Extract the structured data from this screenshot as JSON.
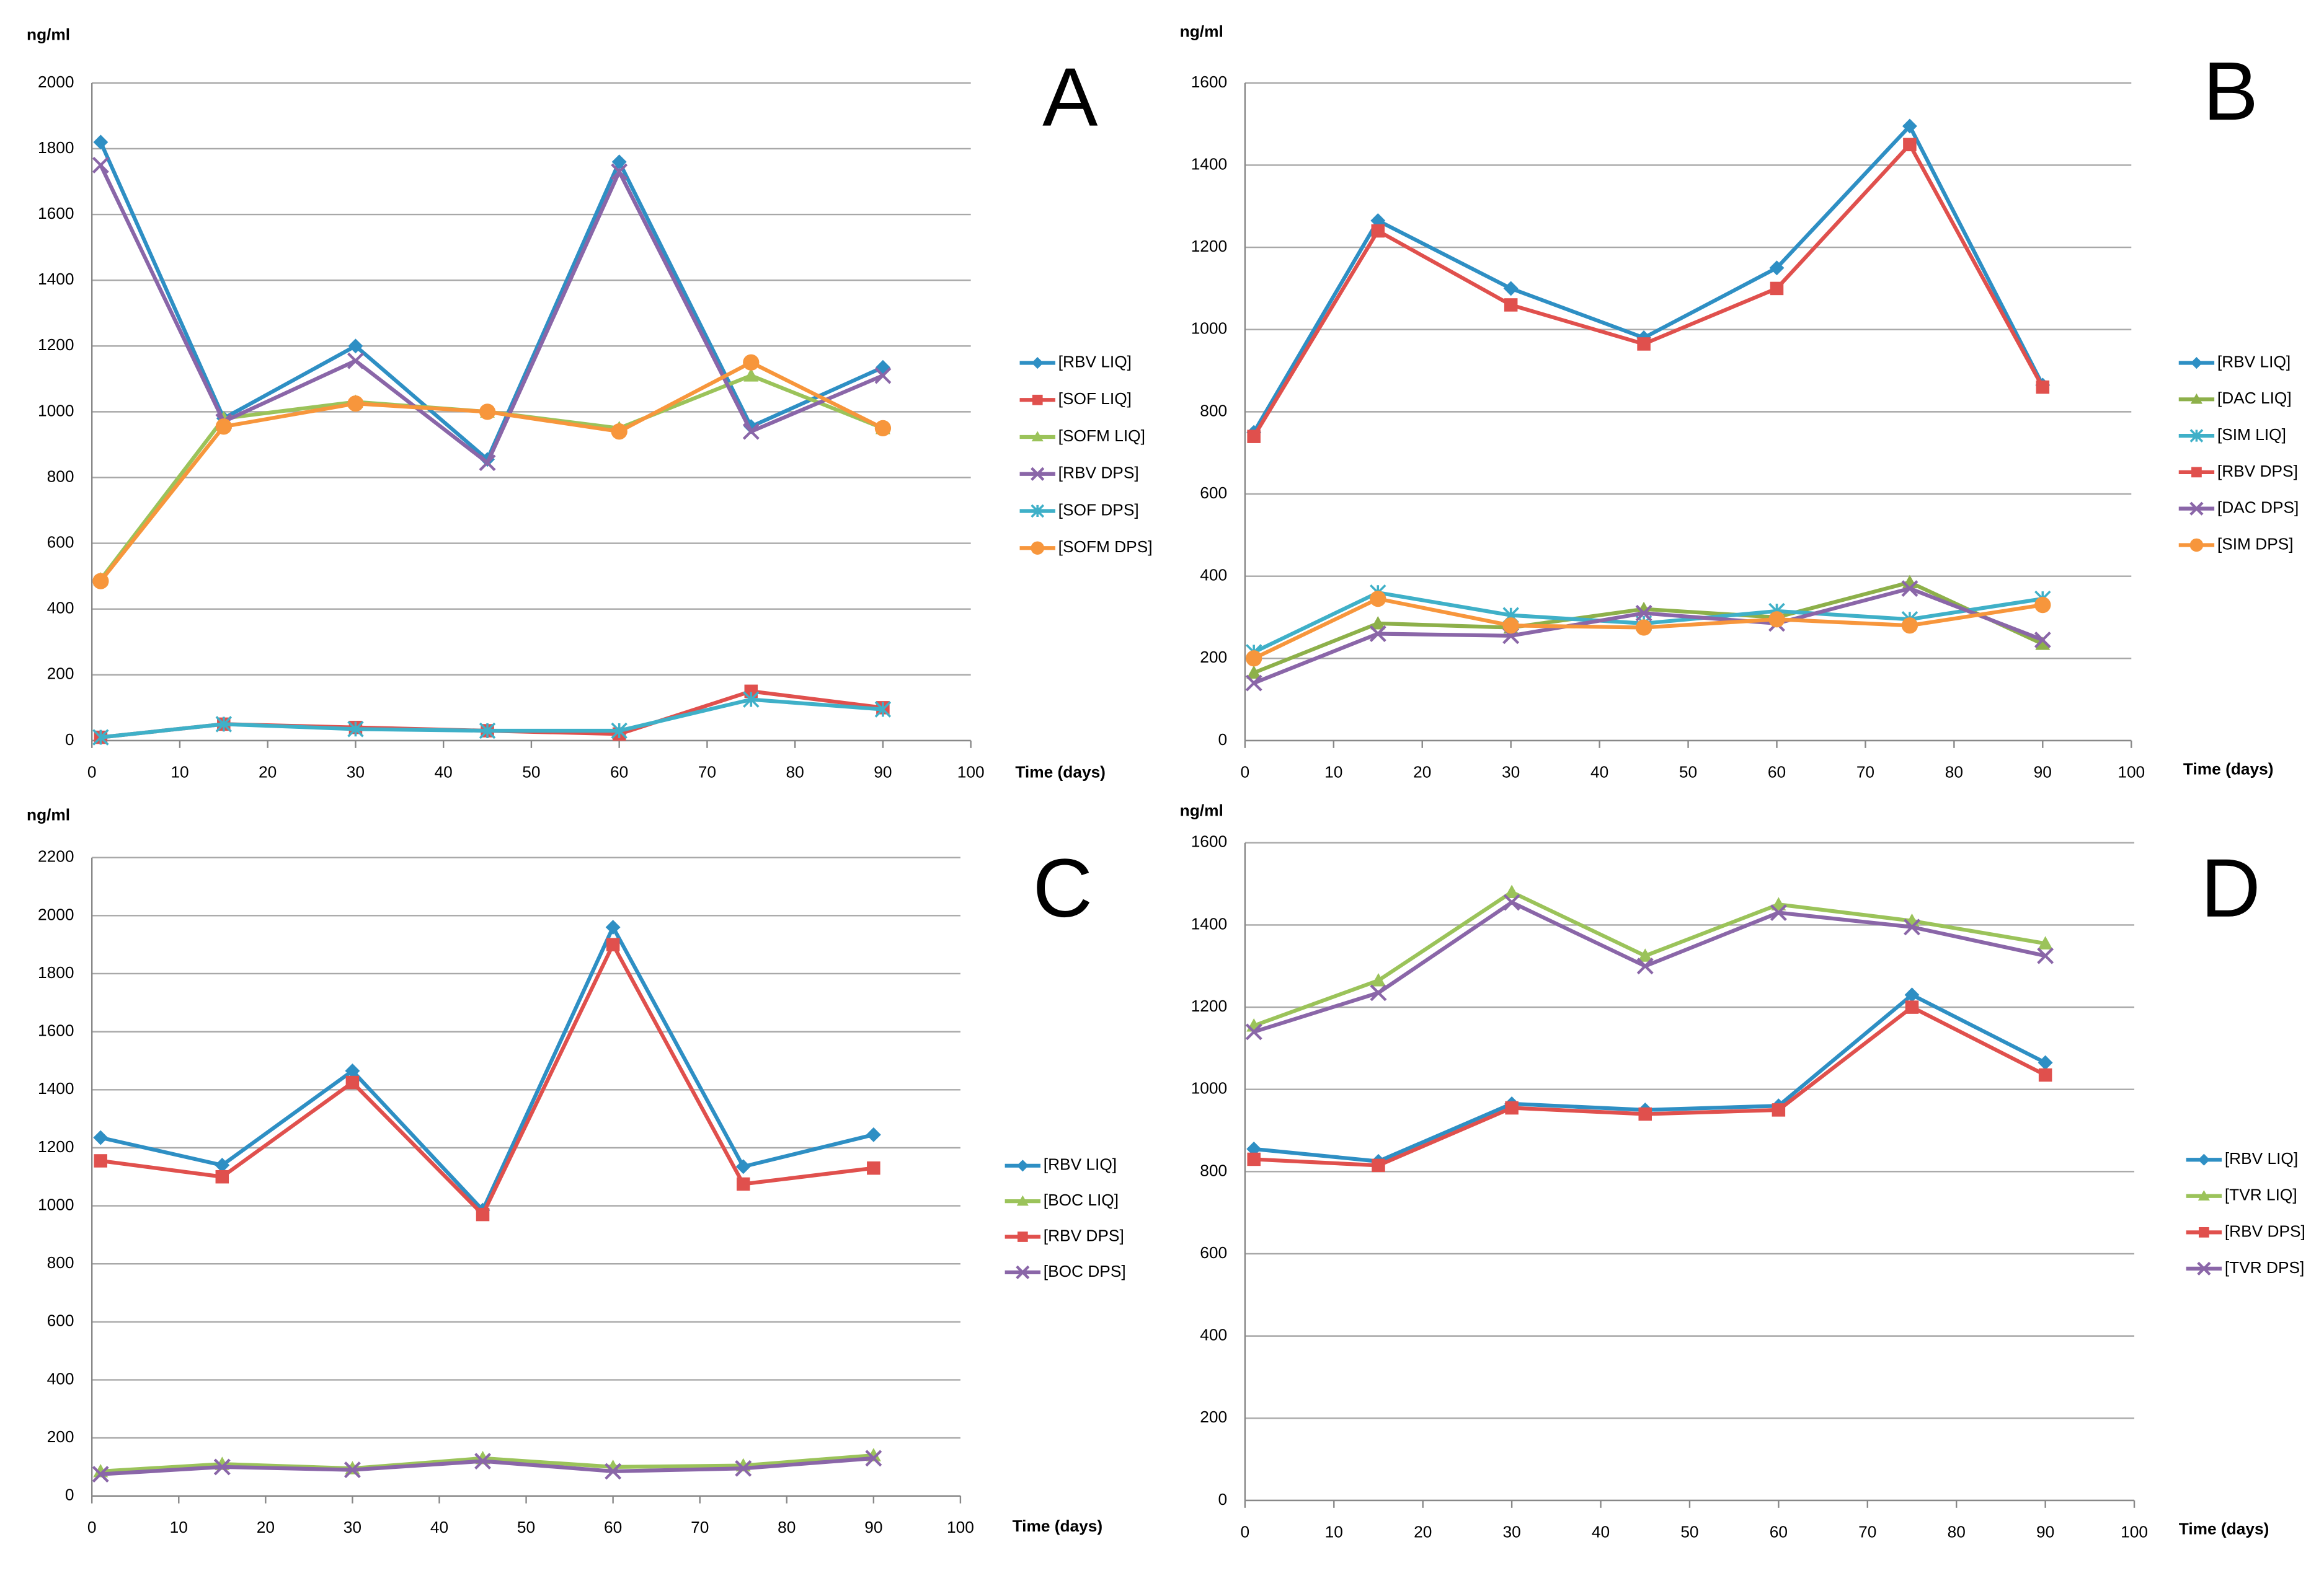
{
  "chart_data": [
    {
      "type": "line",
      "panel_label": "A",
      "y_label": "ng/ml",
      "x_label": "Time (days)",
      "grid": true,
      "xlim": [
        0,
        100
      ],
      "xticks": [
        0,
        10,
        20,
        30,
        40,
        50,
        60,
        70,
        80,
        90,
        100
      ],
      "ylim": [
        0,
        2000
      ],
      "yticks": [
        0,
        200,
        400,
        600,
        800,
        1000,
        1200,
        1400,
        1600,
        1800,
        2000
      ],
      "x": [
        1,
        15,
        30,
        45,
        60,
        75,
        90
      ],
      "series": [
        {
          "name": "[RBV LIQ]",
          "color": "#2e8fc4",
          "marker": "diamond",
          "values": [
            1820,
            980,
            1200,
            855,
            1760,
            955,
            1135
          ]
        },
        {
          "name": "[SOF LIQ]",
          "color": "#e0504d",
          "marker": "square",
          "values": [
            10,
            50,
            40,
            30,
            20,
            150,
            100
          ]
        },
        {
          "name": "[SOFM LIQ]",
          "color": "#9bc35a",
          "marker": "triangle",
          "values": [
            490,
            980,
            1030,
            1000,
            950,
            1110,
            950
          ]
        },
        {
          "name": "[RBV DPS]",
          "color": "#8a66a8",
          "marker": "x",
          "values": [
            1750,
            970,
            1155,
            845,
            1730,
            940,
            1110
          ]
        },
        {
          "name": "[SOF DPS]",
          "color": "#3fb0c8",
          "marker": "star",
          "values": [
            10,
            50,
            35,
            30,
            30,
            125,
            95
          ]
        },
        {
          "name": "[SOFM DPS]",
          "color": "#f7963c",
          "marker": "circle",
          "values": [
            485,
            955,
            1025,
            1000,
            940,
            1150,
            950
          ]
        }
      ]
    },
    {
      "type": "line",
      "panel_label": "B",
      "y_label": "ng/ml",
      "x_label": "Time (days)",
      "grid": true,
      "xlim": [
        0,
        100
      ],
      "xticks": [
        0,
        10,
        20,
        30,
        40,
        50,
        60,
        70,
        80,
        90,
        100
      ],
      "ylim": [
        0,
        1600
      ],
      "yticks": [
        0,
        200,
        400,
        600,
        800,
        1000,
        1200,
        1400,
        1600
      ],
      "x": [
        1,
        15,
        30,
        45,
        60,
        75,
        90
      ],
      "series": [
        {
          "name": "[RBV LIQ]",
          "color": "#2e8fc4",
          "marker": "diamond",
          "values": [
            750,
            1265,
            1100,
            980,
            1150,
            1495,
            865
          ]
        },
        {
          "name": "[DAC LIQ]",
          "color": "#8db04a",
          "marker": "triangle",
          "values": [
            165,
            285,
            275,
            320,
            300,
            385,
            235
          ]
        },
        {
          "name": "[SIM LIQ]",
          "color": "#3fb0c8",
          "marker": "star",
          "values": [
            215,
            360,
            305,
            285,
            315,
            295,
            345
          ]
        },
        {
          "name": "[RBV DPS]",
          "color": "#e0504d",
          "marker": "square",
          "values": [
            740,
            1240,
            1060,
            965,
            1100,
            1450,
            860
          ]
        },
        {
          "name": "[DAC DPS]",
          "color": "#8a66a8",
          "marker": "x",
          "values": [
            140,
            260,
            255,
            310,
            285,
            370,
            245
          ]
        },
        {
          "name": "[SIM DPS]",
          "color": "#f7963c",
          "marker": "circle",
          "values": [
            200,
            345,
            280,
            275,
            295,
            280,
            330
          ]
        }
      ]
    },
    {
      "type": "line",
      "panel_label": "C",
      "y_label": "ng/ml",
      "x_label": "Time (days)",
      "grid": true,
      "xlim": [
        0,
        100
      ],
      "xticks": [
        0,
        10,
        20,
        30,
        40,
        50,
        60,
        70,
        80,
        90,
        100
      ],
      "ylim": [
        0,
        2200
      ],
      "yticks": [
        0,
        200,
        400,
        600,
        800,
        1000,
        1200,
        1400,
        1600,
        1800,
        2000,
        2200
      ],
      "x": [
        1,
        15,
        30,
        45,
        60,
        75,
        90
      ],
      "series": [
        {
          "name": "[RBV LIQ]",
          "color": "#2e8fc4",
          "marker": "diamond",
          "values": [
            1235,
            1140,
            1465,
            985,
            1960,
            1135,
            1245
          ]
        },
        {
          "name": "[BOC LIQ]",
          "color": "#9bc35a",
          "marker": "triangle",
          "values": [
            85,
            110,
            95,
            130,
            100,
            105,
            140
          ]
        },
        {
          "name": "[RBV DPS]",
          "color": "#e0504d",
          "marker": "square",
          "values": [
            1155,
            1100,
            1425,
            970,
            1900,
            1075,
            1130
          ]
        },
        {
          "name": "[BOC DPS]",
          "color": "#8a66a8",
          "marker": "x",
          "values": [
            75,
            100,
            90,
            120,
            85,
            95,
            130
          ]
        }
      ]
    },
    {
      "type": "line",
      "panel_label": "D",
      "y_label": "ng/ml",
      "x_label": "Time (days)",
      "grid": true,
      "xlim": [
        0,
        100
      ],
      "xticks": [
        0,
        10,
        20,
        30,
        40,
        50,
        60,
        70,
        80,
        90,
        100
      ],
      "ylim": [
        0,
        1600
      ],
      "yticks": [
        0,
        200,
        400,
        600,
        800,
        1000,
        1200,
        1400,
        1600
      ],
      "x": [
        1,
        15,
        30,
        45,
        60,
        75,
        90
      ],
      "series": [
        {
          "name": "[RBV LIQ]",
          "color": "#2e8fc4",
          "marker": "diamond",
          "values": [
            855,
            825,
            965,
            950,
            960,
            1230,
            1065
          ]
        },
        {
          "name": "[TVR LIQ]",
          "color": "#9bc35a",
          "marker": "triangle",
          "values": [
            1155,
            1265,
            1480,
            1325,
            1450,
            1410,
            1355
          ]
        },
        {
          "name": "[RBV DPS]",
          "color": "#e0504d",
          "marker": "square",
          "values": [
            830,
            815,
            955,
            940,
            950,
            1200,
            1035
          ]
        },
        {
          "name": "[TVR DPS]",
          "color": "#8a66a8",
          "marker": "x",
          "values": [
            1140,
            1235,
            1455,
            1300,
            1430,
            1395,
            1325
          ]
        }
      ]
    }
  ]
}
